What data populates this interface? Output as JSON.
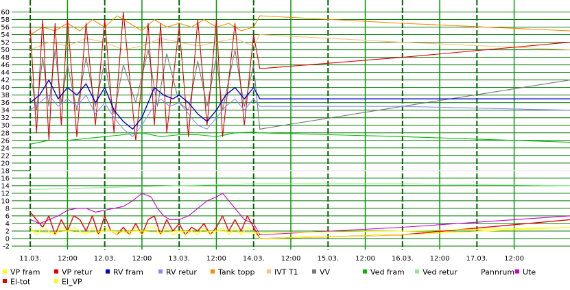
{
  "chart_data": {
    "type": "line",
    "y_ticks": [
      -2,
      0,
      2,
      4,
      6,
      8,
      10,
      12,
      14,
      16,
      18,
      20,
      22,
      24,
      26,
      28,
      30,
      32,
      34,
      36,
      38,
      40,
      42,
      44,
      46,
      48,
      50,
      52,
      54,
      56,
      58,
      60
    ],
    "ylim": [
      -2,
      61
    ],
    "x_ticks": [
      "11.03.",
      "12:00",
      "12.03.",
      "12:00",
      "13.03.",
      "12:00",
      "14.03.",
      "12:00",
      "15.03.",
      "12:00",
      "16.03.",
      "12:00",
      "17.03.",
      "12:00"
    ],
    "x_range_hours": [
      -6,
      174
    ],
    "major_grid": true,
    "legend_placement": "bottom",
    "series": [
      {
        "name": "VP fram",
        "color": "#ffff00",
        "values": [
          [
            0,
            2
          ],
          [
            6,
            1.5
          ],
          [
            12,
            2
          ],
          [
            18,
            1.5
          ],
          [
            24,
            2
          ],
          [
            30,
            1.8
          ],
          [
            36,
            2
          ],
          [
            42,
            1.6
          ],
          [
            48,
            2
          ],
          [
            54,
            1.7
          ],
          [
            60,
            2
          ],
          [
            72,
            1.5
          ],
          [
            120,
            2
          ],
          [
            174,
            3
          ]
        ]
      },
      {
        "name": "VP retur",
        "color": "#dd0000",
        "values": [
          [
            0,
            56
          ],
          [
            2,
            28
          ],
          [
            4,
            58
          ],
          [
            6,
            26
          ],
          [
            8,
            57
          ],
          [
            10,
            30
          ],
          [
            12,
            58
          ],
          [
            15,
            27
          ],
          [
            18,
            57
          ],
          [
            21,
            30
          ],
          [
            24,
            58
          ],
          [
            27,
            28
          ],
          [
            30,
            60
          ],
          [
            34,
            26
          ],
          [
            38,
            57
          ],
          [
            40,
            30
          ],
          [
            42,
            57
          ],
          [
            44,
            28
          ],
          [
            48,
            56
          ],
          [
            51,
            27
          ],
          [
            54,
            58
          ],
          [
            57,
            30
          ],
          [
            60,
            58
          ],
          [
            62,
            27
          ],
          [
            66,
            57
          ],
          [
            69,
            30
          ],
          [
            72,
            54
          ],
          [
            74,
            45
          ],
          [
            120,
            48
          ],
          [
            174,
            52
          ]
        ]
      },
      {
        "name": "RV fram",
        "color": "#0000cc",
        "values": [
          [
            0,
            36
          ],
          [
            3,
            38
          ],
          [
            6,
            42
          ],
          [
            9,
            37
          ],
          [
            12,
            40
          ],
          [
            15,
            38
          ],
          [
            18,
            41
          ],
          [
            21,
            36
          ],
          [
            24,
            40
          ],
          [
            27,
            34
          ],
          [
            30,
            31
          ],
          [
            33,
            29
          ],
          [
            36,
            32
          ],
          [
            38,
            36
          ],
          [
            40,
            40
          ],
          [
            43,
            38
          ],
          [
            46,
            37
          ],
          [
            48,
            38
          ],
          [
            51,
            36
          ],
          [
            54,
            33
          ],
          [
            57,
            31
          ],
          [
            60,
            34
          ],
          [
            63,
            38
          ],
          [
            66,
            40
          ],
          [
            69,
            37
          ],
          [
            72,
            40
          ],
          [
            74,
            37
          ],
          [
            120,
            37
          ],
          [
            174,
            37
          ]
        ]
      },
      {
        "name": "RV retur",
        "color": "#8888ff",
        "values": [
          [
            0,
            34
          ],
          [
            3,
            36
          ],
          [
            6,
            38
          ],
          [
            9,
            35
          ],
          [
            12,
            37
          ],
          [
            15,
            35
          ],
          [
            18,
            38
          ],
          [
            21,
            33
          ],
          [
            24,
            36
          ],
          [
            27,
            32
          ],
          [
            30,
            29
          ],
          [
            33,
            27
          ],
          [
            36,
            30
          ],
          [
            39,
            34
          ],
          [
            42,
            37
          ],
          [
            45,
            35
          ],
          [
            48,
            36
          ],
          [
            51,
            33
          ],
          [
            54,
            30
          ],
          [
            57,
            29
          ],
          [
            60,
            32
          ],
          [
            63,
            35
          ],
          [
            66,
            37
          ],
          [
            69,
            34
          ],
          [
            72,
            37
          ],
          [
            74,
            35
          ],
          [
            120,
            35
          ],
          [
            174,
            34
          ]
        ]
      },
      {
        "name": "Tank topp",
        "color": "#ff8800",
        "values": [
          [
            0,
            54
          ],
          [
            4,
            56
          ],
          [
            8,
            55
          ],
          [
            12,
            57
          ],
          [
            16,
            55
          ],
          [
            20,
            58
          ],
          [
            24,
            56
          ],
          [
            28,
            59
          ],
          [
            32,
            57
          ],
          [
            36,
            55
          ],
          [
            40,
            58
          ],
          [
            44,
            56
          ],
          [
            48,
            57
          ],
          [
            52,
            56
          ],
          [
            56,
            58
          ],
          [
            60,
            56
          ],
          [
            64,
            57
          ],
          [
            68,
            55
          ],
          [
            72,
            56
          ],
          [
            74,
            59
          ],
          [
            120,
            57
          ],
          [
            174,
            55
          ]
        ]
      },
      {
        "name": "IVT T1",
        "color": "#ffc080",
        "values": [
          [
            0,
            50
          ],
          [
            6,
            52
          ],
          [
            12,
            51
          ],
          [
            18,
            53
          ],
          [
            24,
            52
          ],
          [
            30,
            50
          ],
          [
            36,
            51
          ],
          [
            42,
            53
          ],
          [
            48,
            52
          ],
          [
            54,
            51
          ],
          [
            60,
            52
          ],
          [
            66,
            53
          ],
          [
            72,
            51
          ],
          [
            74,
            54
          ],
          [
            120,
            52
          ],
          [
            174,
            50
          ]
        ]
      },
      {
        "name": "VV",
        "color": "#777777",
        "values": [
          [
            0,
            44
          ],
          [
            2,
            34
          ],
          [
            4,
            48
          ],
          [
            6,
            35
          ],
          [
            8,
            50
          ],
          [
            10,
            36
          ],
          [
            12,
            46
          ],
          [
            15,
            34
          ],
          [
            18,
            48
          ],
          [
            21,
            35
          ],
          [
            24,
            47
          ],
          [
            27,
            33
          ],
          [
            30,
            46
          ],
          [
            34,
            36
          ],
          [
            38,
            50
          ],
          [
            41,
            35
          ],
          [
            44,
            49
          ],
          [
            48,
            36
          ],
          [
            51,
            34
          ],
          [
            54,
            47
          ],
          [
            57,
            35
          ],
          [
            60,
            48
          ],
          [
            62,
            34
          ],
          [
            66,
            50
          ],
          [
            69,
            35
          ],
          [
            72,
            46
          ],
          [
            74,
            29
          ],
          [
            120,
            35
          ],
          [
            174,
            42
          ]
        ]
      },
      {
        "name": "Ved fram",
        "color": "#00bb00",
        "values": [
          [
            0,
            25
          ],
          [
            6,
            26
          ],
          [
            12,
            26
          ],
          [
            18,
            26.5
          ],
          [
            24,
            27
          ],
          [
            30,
            27.5
          ],
          [
            36,
            28
          ],
          [
            42,
            27
          ],
          [
            48,
            27.5
          ],
          [
            54,
            27.5
          ],
          [
            60,
            27
          ],
          [
            66,
            28
          ],
          [
            72,
            28.2
          ],
          [
            74,
            28
          ],
          [
            120,
            27
          ],
          [
            174,
            25.5
          ]
        ]
      },
      {
        "name": "Ved retur",
        "color": "#88ee88",
        "values": [
          [
            0,
            13
          ],
          [
            24,
            13.5
          ],
          [
            48,
            14
          ],
          [
            72,
            14.5
          ],
          [
            120,
            14.5
          ],
          [
            174,
            14
          ]
        ]
      },
      {
        "name": "Pannrum",
        "color": "#ffffff",
        "values": [
          [
            0,
            18
          ],
          [
            72,
            18
          ],
          [
            120,
            18
          ],
          [
            174,
            18
          ]
        ]
      },
      {
        "name": "Ute",
        "color": "#cc00cc",
        "values": [
          [
            0,
            5
          ],
          [
            3,
            4
          ],
          [
            6,
            5
          ],
          [
            9,
            6
          ],
          [
            12,
            7.5
          ],
          [
            15,
            8
          ],
          [
            18,
            8
          ],
          [
            21,
            7
          ],
          [
            24,
            7.5
          ],
          [
            27,
            8
          ],
          [
            30,
            8.5
          ],
          [
            33,
            10
          ],
          [
            36,
            12
          ],
          [
            39,
            11
          ],
          [
            41,
            8
          ],
          [
            43,
            6
          ],
          [
            45,
            5
          ],
          [
            48,
            5
          ],
          [
            51,
            6
          ],
          [
            54,
            8
          ],
          [
            57,
            10
          ],
          [
            60,
            11
          ],
          [
            62,
            12
          ],
          [
            64,
            10
          ],
          [
            66,
            8
          ],
          [
            69,
            5
          ],
          [
            72,
            4
          ],
          [
            74,
            1
          ],
          [
            120,
            3
          ],
          [
            174,
            6
          ]
        ]
      },
      {
        "name": "El-tot",
        "color": "#ee0000",
        "values": [
          [
            0,
            7
          ],
          [
            2,
            5
          ],
          [
            4,
            3
          ],
          [
            6,
            6
          ],
          [
            8,
            1
          ],
          [
            10,
            5
          ],
          [
            12,
            2
          ],
          [
            14,
            6
          ],
          [
            16,
            5
          ],
          [
            18,
            2
          ],
          [
            20,
            6
          ],
          [
            22,
            1
          ],
          [
            24,
            6
          ],
          [
            26,
            2
          ],
          [
            28,
            1
          ],
          [
            30,
            3
          ],
          [
            32,
            1
          ],
          [
            34,
            4
          ],
          [
            36,
            1
          ],
          [
            38,
            5
          ],
          [
            40,
            6
          ],
          [
            42,
            1
          ],
          [
            44,
            5
          ],
          [
            46,
            2
          ],
          [
            48,
            4
          ],
          [
            50,
            1
          ],
          [
            52,
            3
          ],
          [
            54,
            2
          ],
          [
            56,
            4
          ],
          [
            58,
            1
          ],
          [
            60,
            3
          ],
          [
            62,
            6
          ],
          [
            64,
            2
          ],
          [
            66,
            5
          ],
          [
            68,
            2
          ],
          [
            70,
            6
          ],
          [
            72,
            3
          ],
          [
            74,
            0
          ],
          [
            120,
            1
          ],
          [
            174,
            5
          ]
        ]
      },
      {
        "name": "El_VP",
        "color": "#ffff00",
        "values": [
          [
            0,
            3
          ],
          [
            2,
            1
          ],
          [
            4,
            3
          ],
          [
            6,
            2
          ],
          [
            8,
            1
          ],
          [
            10,
            3
          ],
          [
            12,
            2
          ],
          [
            14,
            3
          ],
          [
            16,
            2
          ],
          [
            18,
            1
          ],
          [
            20,
            3
          ],
          [
            22,
            1
          ],
          [
            24,
            3
          ],
          [
            26,
            2
          ],
          [
            28,
            1
          ],
          [
            30,
            2
          ],
          [
            32,
            1
          ],
          [
            34,
            3
          ],
          [
            36,
            1
          ],
          [
            38,
            3
          ],
          [
            40,
            3
          ],
          [
            42,
            1
          ],
          [
            44,
            3
          ],
          [
            46,
            1
          ],
          [
            48,
            2
          ],
          [
            50,
            1
          ],
          [
            52,
            2
          ],
          [
            54,
            1
          ],
          [
            56,
            3
          ],
          [
            58,
            1
          ],
          [
            60,
            2
          ],
          [
            62,
            3
          ],
          [
            64,
            1
          ],
          [
            66,
            3
          ],
          [
            68,
            1
          ],
          [
            70,
            3
          ],
          [
            72,
            2
          ],
          [
            74,
            0
          ],
          [
            120,
            1
          ],
          [
            174,
            3
          ]
        ]
      }
    ]
  },
  "legend_layout_rows": [
    [
      "VP fram",
      "VP retur",
      "RV fram",
      "RV retur",
      "Tank topp",
      "IVT T1",
      "VV",
      "Ved fram",
      "Ved retur",
      "Pannrum",
      "Ute"
    ],
    [
      "El-tot",
      "El_VP"
    ]
  ]
}
